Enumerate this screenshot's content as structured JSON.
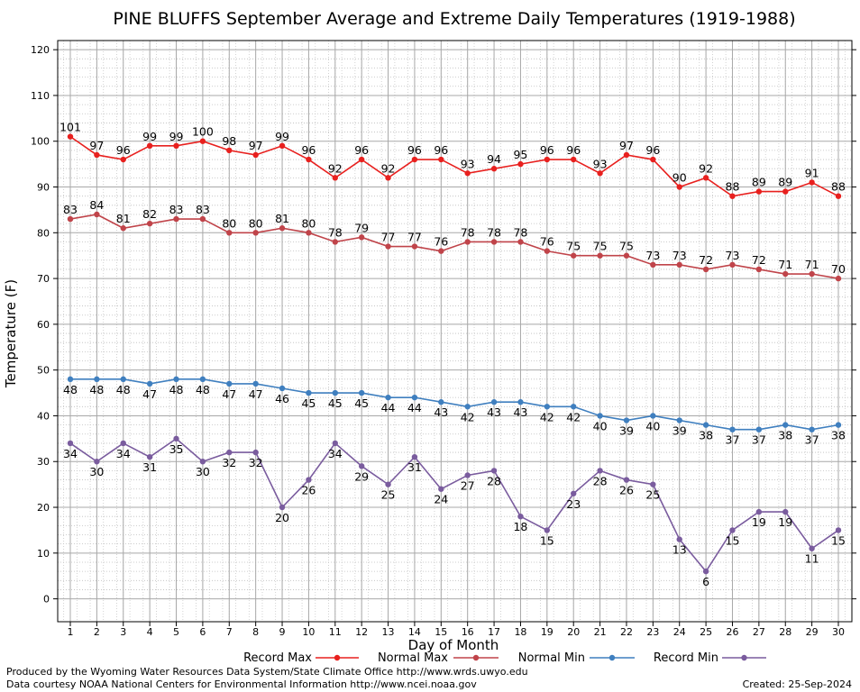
{
  "chart_data": {
    "type": "line",
    "title": "PINE BLUFFS September Average and Extreme Daily Temperatures (1919-1988)",
    "xlabel": "Day of Month",
    "ylabel": "Temperature (F)",
    "x": [
      1,
      2,
      3,
      4,
      5,
      6,
      7,
      8,
      9,
      10,
      11,
      12,
      13,
      14,
      15,
      16,
      17,
      18,
      19,
      20,
      21,
      22,
      23,
      24,
      25,
      26,
      27,
      28,
      29,
      30
    ],
    "ylim": [
      -5,
      122
    ],
    "yticks": [
      0,
      10,
      20,
      30,
      40,
      50,
      60,
      70,
      80,
      90,
      100,
      110,
      120
    ],
    "grid": true,
    "legend_position": "bottom",
    "series": [
      {
        "name": "Record Max",
        "color": "#e8201e",
        "label_position": "above",
        "values": [
          101,
          97,
          96,
          99,
          99,
          100,
          98,
          97,
          99,
          96,
          92,
          96,
          92,
          96,
          96,
          93,
          94,
          95,
          96,
          96,
          93,
          97,
          96,
          90,
          92,
          88,
          89,
          89,
          91,
          88
        ]
      },
      {
        "name": "Normal Max",
        "color": "#c0444a",
        "label_position": "above",
        "values": [
          83,
          84,
          81,
          82,
          83,
          83,
          80,
          80,
          81,
          80,
          78,
          79,
          77,
          77,
          76,
          78,
          78,
          78,
          76,
          75,
          75,
          75,
          73,
          73,
          72,
          73,
          72,
          71,
          71,
          70
        ]
      },
      {
        "name": "Normal Min",
        "color": "#3f7fbf",
        "label_position": "below",
        "values": [
          48,
          48,
          48,
          47,
          48,
          48,
          47,
          47,
          46,
          45,
          45,
          45,
          44,
          44,
          43,
          42,
          43,
          43,
          42,
          42,
          40,
          39,
          40,
          39,
          38,
          37,
          37,
          38,
          37,
          38
        ]
      },
      {
        "name": "Record Min",
        "color": "#7a5c9e",
        "label_position": "below",
        "values": [
          34,
          30,
          34,
          31,
          35,
          30,
          32,
          32,
          20,
          26,
          34,
          29,
          25,
          31,
          24,
          27,
          28,
          18,
          15,
          23,
          28,
          26,
          25,
          13,
          6,
          15,
          19,
          19,
          11,
          15
        ]
      }
    ]
  },
  "footer": {
    "credit_line1": "Produced by the Wyoming Water Resources Data System/State Climate Office http://www.wrds.uwyo.edu",
    "credit_line2": "Data courtesy NOAA National Centers for Environmental Information http://www.ncei.noaa.gov",
    "created": "Created:  25-Sep-2024"
  }
}
